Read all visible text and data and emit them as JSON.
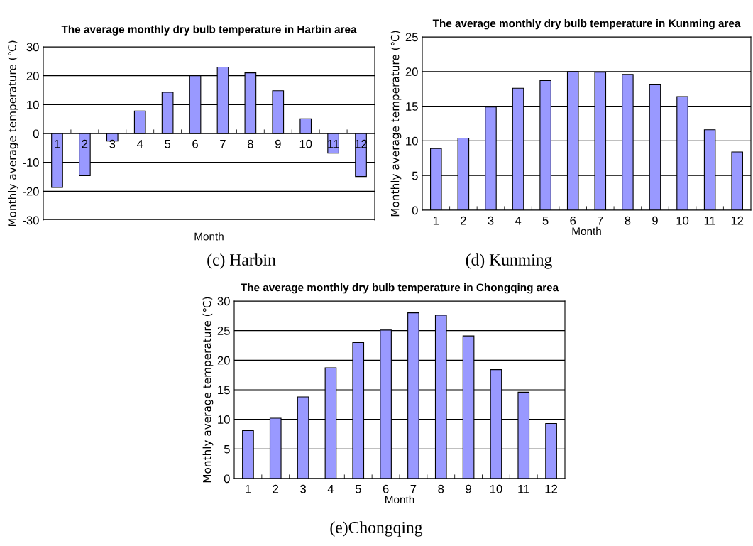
{
  "chart_data": [
    {
      "type": "bar",
      "title": "The average monthly dry bulb temperature in Harbin area",
      "xlabel": "Month",
      "ylabel": "Monthly average temperature (℃)",
      "categories": [
        "1",
        "2",
        "3",
        "4",
        "5",
        "6",
        "7",
        "8",
        "9",
        "10",
        "11",
        "12"
      ],
      "values": [
        -18.7,
        -14.6,
        -2.6,
        7.8,
        14.3,
        20.0,
        23.0,
        21.0,
        14.8,
        5.1,
        -6.8,
        -14.9
      ],
      "color": "#9999ff",
      "ylim": [
        -30,
        30
      ],
      "yticks": [
        -30,
        -20,
        -10,
        0,
        10,
        20,
        30
      ],
      "grid": "y",
      "annotations": [
        "(c) Harbin"
      ]
    },
    {
      "type": "bar",
      "title": "The average monthly dry bulb temperature in Kunming area",
      "xlabel": "Month",
      "ylabel": "Monthly average temperature (℃)",
      "categories": [
        "1",
        "2",
        "3",
        "4",
        "5",
        "6",
        "7",
        "8",
        "9",
        "10",
        "11",
        "12"
      ],
      "values": [
        8.9,
        10.4,
        14.9,
        17.6,
        18.7,
        20.0,
        19.9,
        19.6,
        18.1,
        16.4,
        11.6,
        8.4
      ],
      "color": "#9999ff",
      "ylim": [
        0,
        25
      ],
      "yticks": [
        0,
        5,
        10,
        15,
        20,
        25
      ],
      "grid": "y",
      "annotations": [
        "(d) Kunming"
      ]
    },
    {
      "type": "bar",
      "title": "The average monthly dry bulb temperature in Chongqing area",
      "xlabel": "Month",
      "ylabel": "Monthly average temperature (℃)",
      "categories": [
        "1",
        "2",
        "3",
        "4",
        "5",
        "6",
        "7",
        "8",
        "9",
        "10",
        "11",
        "12"
      ],
      "values": [
        8.1,
        10.2,
        13.8,
        18.7,
        23.0,
        25.1,
        28.0,
        27.6,
        24.1,
        18.4,
        14.6,
        9.3
      ],
      "color": "#9999ff",
      "ylim": [
        0,
        30
      ],
      "yticks": [
        0,
        5,
        10,
        15,
        20,
        25,
        30
      ],
      "grid": "y",
      "annotations": [
        "(e)Chongqing"
      ]
    }
  ]
}
